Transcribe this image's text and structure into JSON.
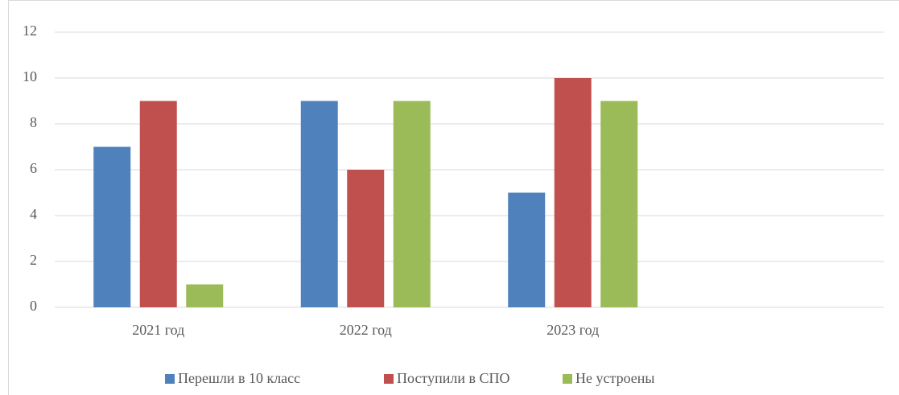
{
  "chart_data": {
    "type": "bar",
    "categories": [
      "2021 год",
      "2022 год",
      "2023 год",
      null
    ],
    "series": [
      {
        "name": "Перешли в 10 класс",
        "color": "#4f81bd",
        "values": [
          7,
          9,
          5,
          null
        ]
      },
      {
        "name": "Поступили в СПО",
        "color": "#c0504d",
        "values": [
          9,
          6,
          10,
          null
        ]
      },
      {
        "name": "Не устроены",
        "color": "#9bbb59",
        "values": [
          1,
          9,
          9,
          null
        ]
      }
    ],
    "ylim": [
      0,
      12
    ],
    "yticks": [
      0,
      2,
      4,
      6,
      8,
      10,
      12
    ],
    "grid": true,
    "legend": "bottom"
  }
}
